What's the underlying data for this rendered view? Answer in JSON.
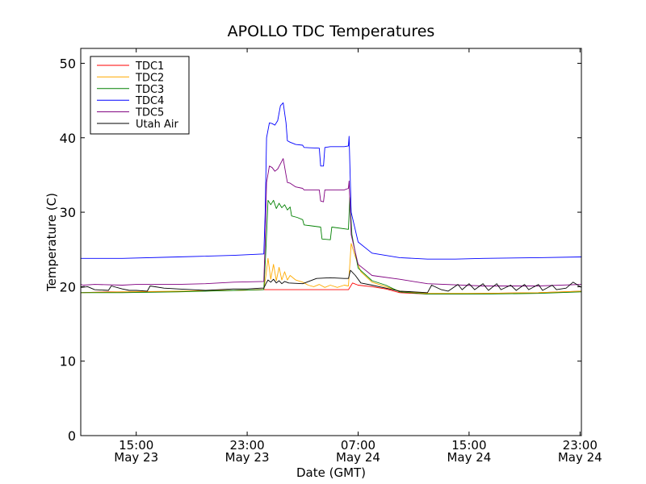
{
  "chart_data": {
    "type": "line",
    "title": "APOLLO TDC Temperatures",
    "xlabel": "Date (GMT)",
    "ylabel": "Temperature (C)",
    "x_unit": "hours since May 23 00:00 GMT",
    "xlim": [
      11,
      47.1
    ],
    "ylim": [
      0,
      52
    ],
    "yticks": [
      0,
      10,
      20,
      30,
      40,
      50
    ],
    "xticks": [
      {
        "x": 15,
        "time": "15:00",
        "date": "May 23"
      },
      {
        "x": 23,
        "time": "23:00",
        "date": "May 23"
      },
      {
        "x": 31,
        "time": "07:00",
        "date": "May 24"
      },
      {
        "x": 39,
        "time": "15:00",
        "date": "May 24"
      },
      {
        "x": 47,
        "time": "23:00",
        "date": "May 24"
      }
    ],
    "grid": false,
    "legend_position": "top-left",
    "series": [
      {
        "name": "TDC1",
        "color": "#ff0000",
        "x": [
          11,
          13,
          16,
          19,
          22,
          24.2,
          24.3,
          25,
          26,
          27,
          28,
          29,
          30,
          30.3,
          30.6,
          31,
          32,
          33,
          34,
          36,
          40,
          44,
          47.1
        ],
        "y": [
          19.2,
          19.3,
          19.3,
          19.4,
          19.5,
          19.6,
          19.6,
          19.6,
          19.6,
          19.6,
          19.6,
          19.6,
          19.6,
          19.6,
          20.5,
          20.2,
          20.0,
          19.7,
          19.2,
          19.0,
          19.1,
          19.2,
          19.4
        ]
      },
      {
        "name": "TDC2",
        "color": "#ffaa00",
        "x": [
          11,
          14,
          18,
          22,
          24.2,
          24.35,
          24.5,
          24.7,
          24.9,
          25.1,
          25.3,
          25.5,
          25.7,
          25.9,
          26.1,
          26.5,
          27,
          27.4,
          27.8,
          28.2,
          28.6,
          29,
          29.5,
          30,
          30.3,
          30.5,
          30.8,
          31.2,
          32,
          33,
          34,
          36,
          40,
          44,
          47.1
        ],
        "y": [
          19.2,
          19.3,
          19.4,
          19.5,
          19.6,
          21.5,
          23.8,
          21.0,
          23.0,
          20.8,
          22.6,
          20.9,
          22.0,
          20.9,
          21.5,
          20.9,
          20.6,
          20.2,
          20.0,
          20.3,
          19.9,
          20.2,
          19.9,
          20.2,
          20.1,
          25.8,
          24.0,
          22.0,
          20.6,
          20.0,
          19.4,
          19.1,
          19.1,
          19.2,
          19.4
        ]
      },
      {
        "name": "TDC3",
        "color": "#008000",
        "x": [
          11,
          14,
          18,
          22,
          24.2,
          24.35,
          24.5,
          24.7,
          24.9,
          25.1,
          25.3,
          25.5,
          25.7,
          25.9,
          26.1,
          26.2,
          26.6,
          27.0,
          27.1,
          28.3,
          28.4,
          29.0,
          29.1,
          30.3,
          30.4,
          30.55,
          31,
          32,
          33,
          34,
          36,
          40,
          44,
          47.1
        ],
        "y": [
          19.2,
          19.2,
          19.3,
          19.5,
          19.6,
          25.0,
          31.6,
          31.0,
          31.6,
          30.5,
          31.2,
          30.6,
          31.0,
          30.3,
          30.7,
          29.5,
          29.3,
          29.0,
          28.3,
          28.0,
          26.4,
          26.3,
          28.0,
          27.7,
          32.0,
          27.0,
          22.5,
          20.8,
          20.2,
          19.3,
          19.0,
          19.0,
          19.1,
          19.3
        ]
      },
      {
        "name": "TDC4",
        "color": "#0000ff",
        "x": [
          11,
          14,
          18,
          22,
          24.2,
          24.3,
          24.4,
          24.6,
          24.8,
          25.0,
          25.2,
          25.4,
          25.6,
          25.8,
          25.9,
          26.1,
          26.5,
          27.0,
          27.1,
          28.2,
          28.3,
          28.5,
          28.6,
          29.0,
          29.5,
          30.0,
          30.3,
          30.35,
          30.5,
          31,
          32,
          34,
          36,
          38,
          40,
          44,
          47.1
        ],
        "y": [
          23.8,
          23.8,
          24.0,
          24.2,
          24.4,
          30.0,
          40.0,
          42.0,
          41.9,
          41.7,
          42.3,
          44.3,
          44.7,
          42.0,
          39.6,
          39.4,
          39.1,
          39.0,
          38.7,
          38.6,
          36.2,
          36.2,
          38.7,
          38.8,
          38.8,
          38.8,
          38.9,
          40.2,
          30.0,
          26.0,
          24.5,
          23.9,
          23.7,
          23.7,
          23.8,
          23.9,
          24.0
        ]
      },
      {
        "name": "TDC5",
        "color": "#800080",
        "x": [
          11,
          11.2,
          12,
          14,
          15,
          18,
          20,
          22,
          24.2,
          24.3,
          24.4,
          24.6,
          24.8,
          25.0,
          25.2,
          25.4,
          25.6,
          25.8,
          25.9,
          26.1,
          26.5,
          27.0,
          27.1,
          28.2,
          28.3,
          28.5,
          28.6,
          29.0,
          29.5,
          30.0,
          30.3,
          30.35,
          30.5,
          31,
          32,
          34,
          36,
          40,
          44,
          47.1
        ],
        "y": [
          20.3,
          20.2,
          20.3,
          20.2,
          20.3,
          20.3,
          20.4,
          20.6,
          20.7,
          26.0,
          34.0,
          36.2,
          36.0,
          35.5,
          35.8,
          36.5,
          37.2,
          35.0,
          34.0,
          33.9,
          33.4,
          33.2,
          33.0,
          33.0,
          31.5,
          31.4,
          33.0,
          33.0,
          33.0,
          33.0,
          33.2,
          34.2,
          27.0,
          23.0,
          21.5,
          21.0,
          20.4,
          20.1,
          20.1,
          20.3
        ]
      },
      {
        "name": "Utah Air",
        "color": "#000000",
        "x": [
          11,
          11.5,
          12,
          13,
          13.2,
          14,
          14.5,
          15,
          15.8,
          16,
          17,
          18,
          19,
          20,
          21,
          22,
          23,
          24,
          24.2,
          24.35,
          24.5,
          24.7,
          24.9,
          25.1,
          25.3,
          25.5,
          25.7,
          26.0,
          27,
          28,
          29,
          30,
          30.3,
          30.45,
          30.8,
          31.2,
          32,
          33,
          34,
          35,
          36,
          36.3,
          37,
          37.5,
          38.2,
          38.5,
          39,
          39.4,
          40,
          40.4,
          41,
          41.3,
          42,
          42.4,
          43,
          43.3,
          44,
          44.3,
          45,
          45.3,
          46,
          46.5,
          47.1
        ],
        "y": [
          19.9,
          20.0,
          19.6,
          19.5,
          20.1,
          19.7,
          19.5,
          19.5,
          19.4,
          20.1,
          19.8,
          19.7,
          19.6,
          19.5,
          19.6,
          19.7,
          19.7,
          19.8,
          19.8,
          20.4,
          20.9,
          20.6,
          21.0,
          20.5,
          20.8,
          20.4,
          20.7,
          20.5,
          20.4,
          21.1,
          21.2,
          21.1,
          21.1,
          22.2,
          21.5,
          20.5,
          20.2,
          19.8,
          19.4,
          19.3,
          19.2,
          20.2,
          19.6,
          19.4,
          20.3,
          19.6,
          20.4,
          19.6,
          20.4,
          19.5,
          20.4,
          19.6,
          20.2,
          19.5,
          20.3,
          19.6,
          20.3,
          19.5,
          20.2,
          19.6,
          19.8,
          20.6,
          19.9
        ]
      }
    ]
  }
}
